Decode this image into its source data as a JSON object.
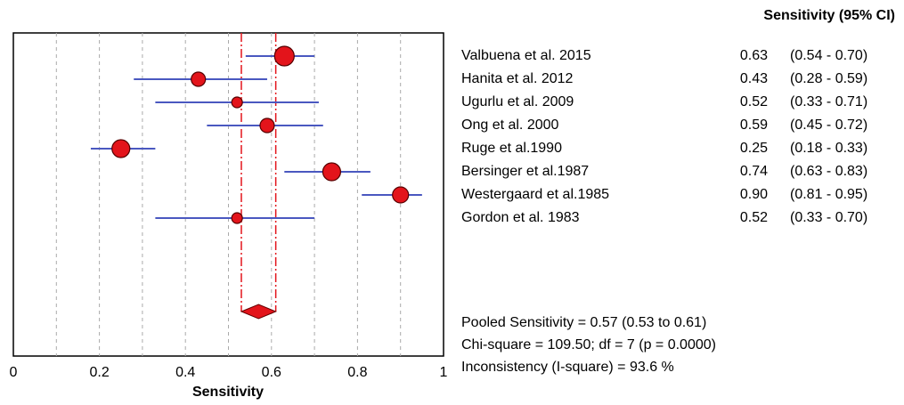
{
  "chart_data": {
    "type": "forest",
    "xlabel": "Sensitivity",
    "column_header": "Sensitivity (95% CI)",
    "categories": [
      "Valbuena et al. 2015",
      "Hanita et al. 2012",
      "Ugurlu et al. 2009",
      "Ong et al. 2000",
      "Ruge et al.1990",
      "Bersinger et al.1987",
      "Westergaard et al.1985",
      "Gordon et al. 1983"
    ],
    "values": [
      0.63,
      0.43,
      0.52,
      0.59,
      0.25,
      0.74,
      0.9,
      0.52
    ],
    "value_labels": [
      "0.63",
      "0.43",
      "0.52",
      "0.59",
      "0.25",
      "0.74",
      "0.90",
      "0.52"
    ],
    "lower": [
      0.54,
      0.28,
      0.33,
      0.45,
      0.18,
      0.63,
      0.81,
      0.33
    ],
    "upper": [
      0.7,
      0.59,
      0.71,
      0.72,
      0.33,
      0.83,
      0.95,
      0.7
    ],
    "ci_labels": [
      "(0.54 - 0.70)",
      "(0.28 - 0.59)",
      "(0.33 - 0.71)",
      "(0.45 - 0.72)",
      "(0.18 - 0.33)",
      "(0.63 - 0.83)",
      "(0.81 - 0.95)",
      "(0.33 - 0.70)"
    ],
    "sizes": [
      11,
      8,
      6,
      8,
      10,
      10,
      9,
      6
    ],
    "pooled": {
      "value": 0.57,
      "lower": 0.53,
      "upper": 0.61
    },
    "annotations": [
      "Pooled Sensitivity = 0.57 (0.53 to 0.61)",
      "Chi-square = 109.50; df =  7 (p = 0.0000)",
      "Inconsistency (I-square) = 93.6 %"
    ],
    "marker_color": "#e3141b",
    "ci_color": "#4a58c0",
    "pooled_line_color": "#e3141b",
    "xlim": [
      0,
      1
    ],
    "xticks": [
      0,
      0.2,
      0.4,
      0.6,
      0.8,
      1
    ],
    "xminorticks": [
      0.1,
      0.3,
      0.5,
      0.7,
      0.9
    ],
    "grid": true
  }
}
